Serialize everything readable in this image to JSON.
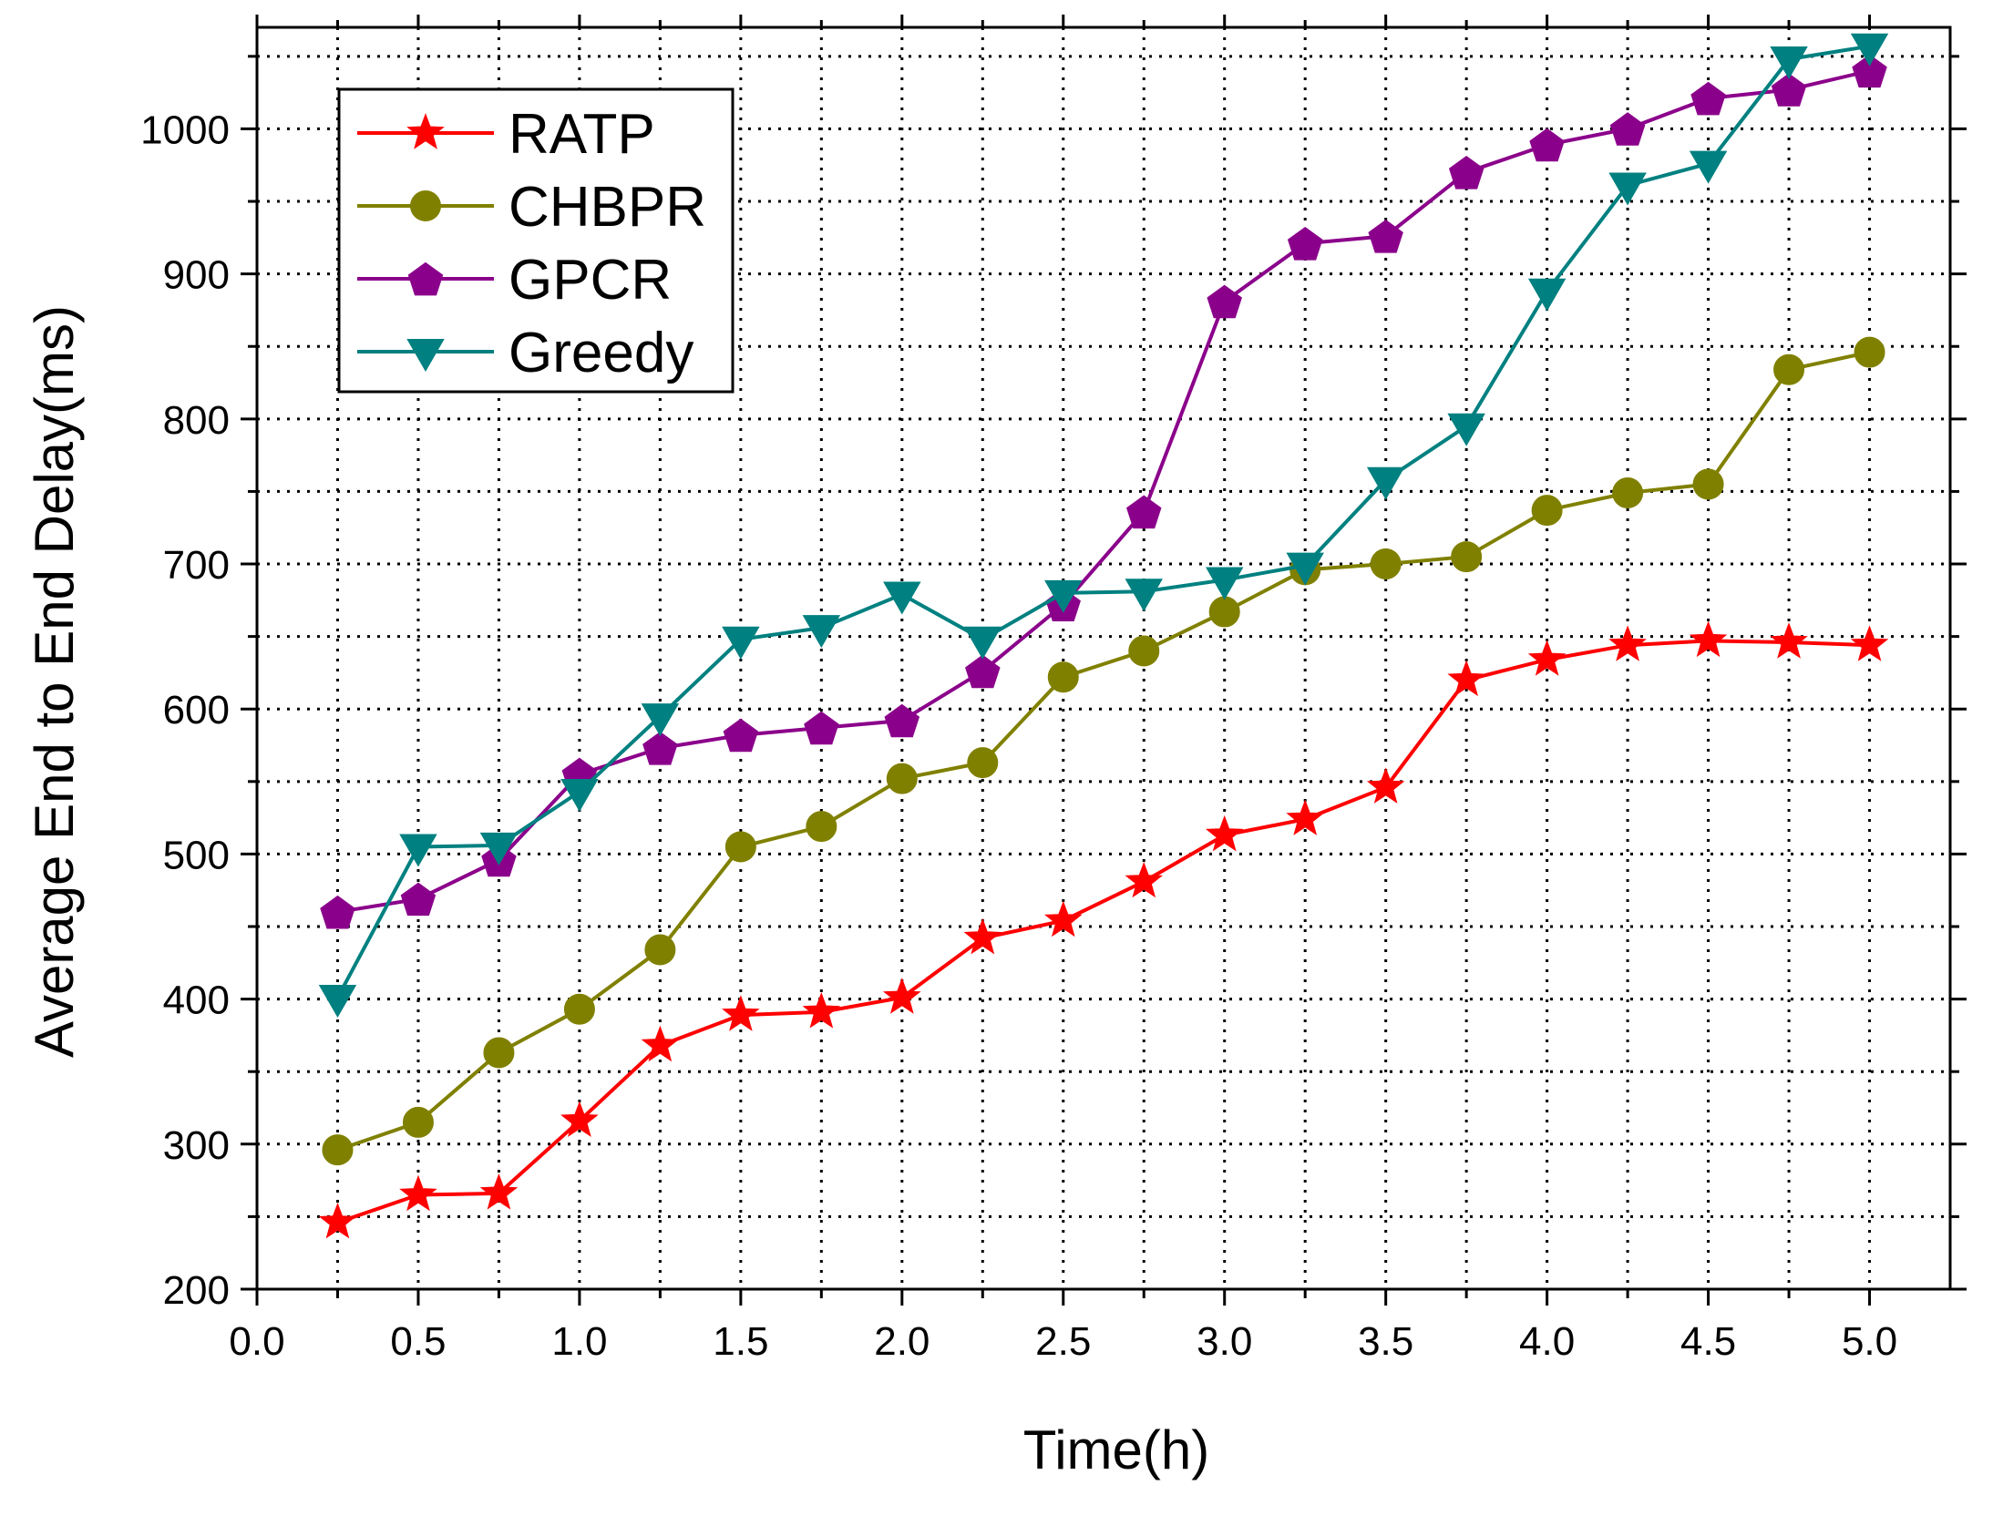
{
  "chart_data": {
    "type": "line",
    "title": "",
    "xlabel": "Time(h)",
    "ylabel": "Average End to End Delay(ms)",
    "xlim": [
      0.0,
      5.25
    ],
    "ylim": [
      200,
      1070
    ],
    "xticks": [
      0.0,
      0.5,
      1.0,
      1.5,
      2.0,
      2.5,
      3.0,
      3.5,
      4.0,
      4.5,
      5.0
    ],
    "xtick_labels": [
      "0.0",
      "0.5",
      "1.0",
      "1.5",
      "2.0",
      "2.5",
      "3.0",
      "3.5",
      "4.0",
      "4.5",
      "5.0"
    ],
    "yticks": [
      200,
      300,
      400,
      500,
      600,
      700,
      800,
      900,
      1000
    ],
    "ytick_labels": [
      "200",
      "300",
      "400",
      "500",
      "600",
      "700",
      "800",
      "900",
      "1000"
    ],
    "grid": true,
    "grid_style": "dotted",
    "legend_position": "top-left",
    "x": [
      0.25,
      0.5,
      0.75,
      1.0,
      1.25,
      1.5,
      1.75,
      2.0,
      2.25,
      2.5,
      2.75,
      3.0,
      3.25,
      3.5,
      3.75,
      4.0,
      4.25,
      4.5,
      4.75,
      5.0
    ],
    "series": [
      {
        "name": "RATP",
        "color": "#ff0000",
        "marker": "star",
        "values": [
          246,
          265,
          266,
          316,
          368,
          389,
          391,
          401,
          442,
          454,
          481,
          513,
          524,
          546,
          620,
          634,
          644,
          647,
          646,
          644
        ]
      },
      {
        "name": "CHBPR",
        "color": "#808000",
        "marker": "circle",
        "values": [
          296,
          315,
          363,
          393,
          434,
          505,
          519,
          552,
          563,
          622,
          640,
          667,
          696,
          700,
          705,
          737,
          749,
          755,
          834,
          846
        ]
      },
      {
        "name": "GPCR",
        "color": "#8b008b",
        "marker": "pentagon",
        "values": [
          460,
          469,
          496,
          555,
          573,
          582,
          587,
          592,
          626,
          672,
          736,
          881,
          921,
          926,
          970,
          989,
          1000,
          1021,
          1027,
          1040
        ]
      },
      {
        "name": "Greedy",
        "color": "#008080",
        "marker": "triangle-down",
        "values": [
          401,
          505,
          506,
          543,
          595,
          648,
          656,
          679,
          648,
          680,
          681,
          689,
          699,
          758,
          795,
          888,
          961,
          976,
          1048,
          1057
        ]
      }
    ]
  }
}
